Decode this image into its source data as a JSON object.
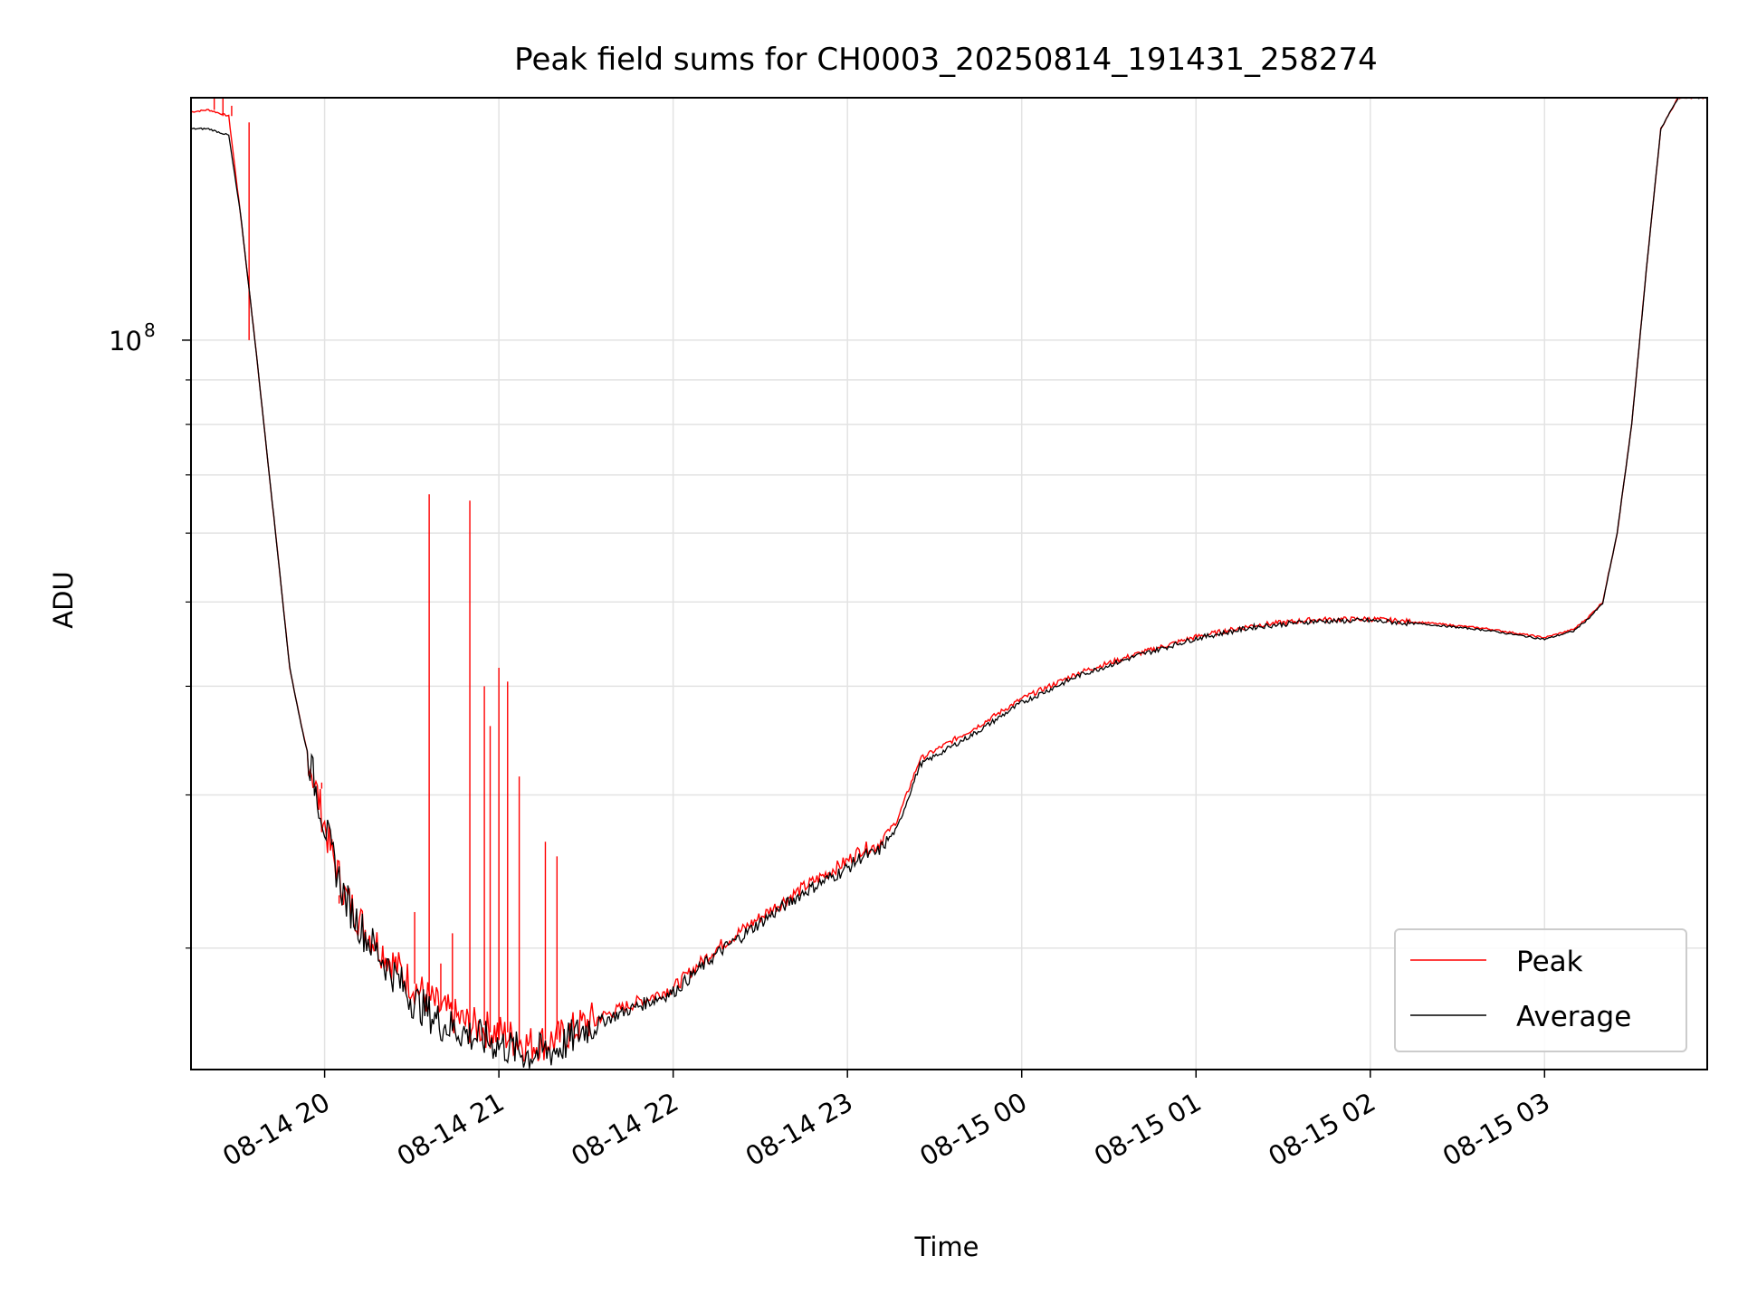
{
  "chart_data": {
    "type": "line",
    "title": "Peak field sums for CH0003_20250814_191431_258274",
    "xlabel": "Time",
    "ylabel": "ADU",
    "y_scale": "log",
    "grid": true,
    "legend_position": "lower-right",
    "xlim": [
      "2025-08-14 19:14",
      "2025-08-15 03:56"
    ],
    "ylim": [
      14500000,
      190000000
    ],
    "x_ticks": [
      {
        "value": "2025-08-14 20:00",
        "label": "08-14 20"
      },
      {
        "value": "2025-08-14 21:00",
        "label": "08-14 21"
      },
      {
        "value": "2025-08-14 22:00",
        "label": "08-14 22"
      },
      {
        "value": "2025-08-14 23:00",
        "label": "08-14 23"
      },
      {
        "value": "2025-08-15 00:00",
        "label": "08-15 00"
      },
      {
        "value": "2025-08-15 01:00",
        "label": "08-15 01"
      },
      {
        "value": "2025-08-15 02:00",
        "label": "08-15 02"
      },
      {
        "value": "2025-08-15 03:00",
        "label": "08-15 03"
      }
    ],
    "y_major_ticks": [
      {
        "value": 100000000,
        "base": "10",
        "exponent": "8"
      }
    ],
    "y_minor_ticks": [
      20000000,
      30000000,
      40000000,
      50000000,
      60000000,
      70000000,
      80000000,
      90000000
    ],
    "series": [
      {
        "name": "Peak",
        "color": "#ff0000",
        "x": [
          "2025-08-14 19:14",
          "2025-08-14 19:20",
          "2025-08-14 19:27",
          "2025-08-14 19:31",
          "2025-08-14 19:36",
          "2025-08-14 19:42",
          "2025-08-14 19:48",
          "2025-08-14 19:52",
          "2025-08-14 19:57",
          "2025-08-14 20:02",
          "2025-08-14 20:07",
          "2025-08-14 20:14",
          "2025-08-14 20:22",
          "2025-08-14 20:30",
          "2025-08-14 20:40",
          "2025-08-14 20:50",
          "2025-08-14 21:00",
          "2025-08-14 21:10",
          "2025-08-14 21:20",
          "2025-08-14 21:30",
          "2025-08-14 21:45",
          "2025-08-14 22:00",
          "2025-08-14 22:15",
          "2025-08-14 22:30",
          "2025-08-14 22:45",
          "2025-08-14 23:00",
          "2025-08-14 23:05",
          "2025-08-14 23:10",
          "2025-08-14 23:17",
          "2025-08-14 23:25",
          "2025-08-14 23:45",
          "2025-08-15 00:00",
          "2025-08-15 00:20",
          "2025-08-15 00:40",
          "2025-08-15 01:00",
          "2025-08-15 01:20",
          "2025-08-15 01:40",
          "2025-08-15 02:00",
          "2025-08-15 02:20",
          "2025-08-15 02:40",
          "2025-08-15 03:00",
          "2025-08-15 03:10",
          "2025-08-15 03:15",
          "2025-08-15 03:20",
          "2025-08-15 03:25",
          "2025-08-15 03:30",
          "2025-08-15 03:35",
          "2025-08-15 03:40",
          "2025-08-15 03:46",
          "2025-08-15 03:56"
        ],
        "y": [
          183000000,
          184000000,
          181000000,
          140000000,
          100000000,
          65000000,
          42000000,
          36000000,
          30500000,
          26000000,
          23000000,
          21000000,
          19500000,
          18200000,
          17000000,
          16300000,
          16000000,
          15500000,
          15700000,
          16400000,
          17200000,
          18000000,
          20000000,
          21700000,
          23500000,
          25200000,
          26000000,
          26200000,
          28000000,
          33000000,
          36000000,
          38700000,
          41500000,
          43600000,
          45600000,
          47000000,
          47700000,
          47800000,
          47300000,
          46600000,
          45500000,
          46500000,
          48000000,
          50000000,
          60000000,
          80000000,
          120000000,
          175000000,
          190000000,
          190000000
        ],
        "spikes": [
          {
            "x": "2025-08-14 19:22",
            "y": 190000000
          },
          {
            "x": "2025-08-14 19:25",
            "y": 190000000
          },
          {
            "x": "2025-08-14 19:28",
            "y": 186000000
          },
          {
            "x": "2025-08-14 19:34",
            "y": 178000000
          },
          {
            "x": "2025-08-14 19:59",
            "y": 31000000
          },
          {
            "x": "2025-08-14 20:05",
            "y": 22500000
          },
          {
            "x": "2025-08-14 20:31",
            "y": 22000000
          },
          {
            "x": "2025-08-14 20:36",
            "y": 66500000
          },
          {
            "x": "2025-08-14 20:40",
            "y": 19200000
          },
          {
            "x": "2025-08-14 20:44",
            "y": 20800000
          },
          {
            "x": "2025-08-14 20:50",
            "y": 65400000
          },
          {
            "x": "2025-08-14 20:55",
            "y": 40000000
          },
          {
            "x": "2025-08-14 20:57",
            "y": 36000000
          },
          {
            "x": "2025-08-14 21:00",
            "y": 42000000
          },
          {
            "x": "2025-08-14 21:03",
            "y": 40500000
          },
          {
            "x": "2025-08-14 21:07",
            "y": 31500000
          },
          {
            "x": "2025-08-14 21:16",
            "y": 26500000
          },
          {
            "x": "2025-08-14 21:20",
            "y": 25500000
          }
        ]
      },
      {
        "name": "Average",
        "color": "#000000",
        "x": [
          "2025-08-14 19:14",
          "2025-08-14 19:20",
          "2025-08-14 19:27",
          "2025-08-14 19:31",
          "2025-08-14 19:36",
          "2025-08-14 19:42",
          "2025-08-14 19:48",
          "2025-08-14 19:52",
          "2025-08-14 19:57",
          "2025-08-14 20:02",
          "2025-08-14 20:07",
          "2025-08-14 20:14",
          "2025-08-14 20:22",
          "2025-08-14 20:30",
          "2025-08-14 20:40",
          "2025-08-14 20:50",
          "2025-08-14 21:00",
          "2025-08-14 21:10",
          "2025-08-14 21:20",
          "2025-08-14 21:30",
          "2025-08-14 21:45",
          "2025-08-14 22:00",
          "2025-08-14 22:15",
          "2025-08-14 22:30",
          "2025-08-14 22:45",
          "2025-08-14 23:00",
          "2025-08-14 23:05",
          "2025-08-14 23:10",
          "2025-08-14 23:17",
          "2025-08-14 23:25",
          "2025-08-14 23:45",
          "2025-08-15 00:00",
          "2025-08-15 00:20",
          "2025-08-15 00:40",
          "2025-08-15 01:00",
          "2025-08-15 01:20",
          "2025-08-15 01:40",
          "2025-08-15 02:00",
          "2025-08-15 02:20",
          "2025-08-15 02:40",
          "2025-08-15 03:00",
          "2025-08-15 03:10",
          "2025-08-15 03:15",
          "2025-08-15 03:20",
          "2025-08-15 03:25",
          "2025-08-15 03:30",
          "2025-08-15 03:35",
          "2025-08-15 03:40",
          "2025-08-15 03:46",
          "2025-08-15 03:56"
        ],
        "y": [
          175000000,
          175000000,
          172000000,
          140000000,
          100000000,
          65000000,
          42000000,
          36000000,
          30500000,
          26000000,
          22800000,
          20700000,
          19000000,
          17500000,
          16400000,
          15900000,
          15500000,
          15100000,
          15300000,
          16200000,
          17000000,
          17800000,
          19700000,
          21400000,
          23200000,
          24700000,
          25500000,
          25700000,
          27400000,
          32500000,
          35500000,
          38300000,
          41200000,
          43400000,
          45400000,
          46800000,
          47500000,
          47600000,
          47100000,
          46400000,
          45300000,
          46300000,
          47800000,
          49800000,
          60000000,
          80000000,
          120000000,
          175000000,
          190000000,
          190000000
        ]
      }
    ]
  }
}
